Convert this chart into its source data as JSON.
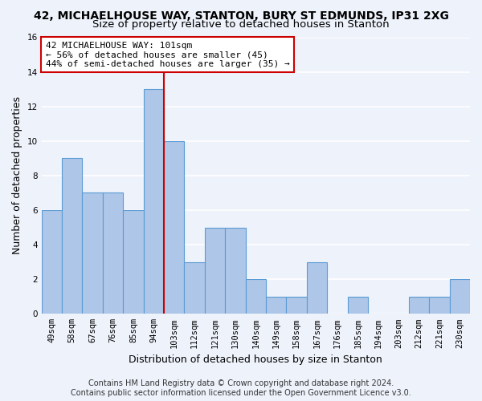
{
  "title_line1": "42, MICHAELHOUSE WAY, STANTON, BURY ST EDMUNDS, IP31 2XG",
  "title_line2": "Size of property relative to detached houses in Stanton",
  "xlabel": "Distribution of detached houses by size in Stanton",
  "ylabel": "Number of detached properties",
  "categories": [
    "49sqm",
    "58sqm",
    "67sqm",
    "76sqm",
    "85sqm",
    "94sqm",
    "103sqm",
    "112sqm",
    "121sqm",
    "130sqm",
    "140sqm",
    "149sqm",
    "158sqm",
    "167sqm",
    "176sqm",
    "185sqm",
    "194sqm",
    "203sqm",
    "212sqm",
    "221sqm",
    "230sqm"
  ],
  "values": [
    6,
    9,
    7,
    7,
    6,
    13,
    10,
    3,
    5,
    5,
    2,
    1,
    1,
    3,
    0,
    1,
    0,
    0,
    1,
    1,
    2
  ],
  "bar_color": "#aec6e8",
  "bar_edgecolor": "#5b9bd5",
  "redline_index": 6,
  "annotation_line1": "42 MICHAELHOUSE WAY: 101sqm",
  "annotation_line2": "← 56% of detached houses are smaller (45)",
  "annotation_line3": "44% of semi-detached houses are larger (35) →",
  "annotation_box_color": "#ffffff",
  "annotation_box_edgecolor": "#cc0000",
  "redline_color": "#cc0000",
  "ylim": [
    0,
    16
  ],
  "yticks": [
    0,
    2,
    4,
    6,
    8,
    10,
    12,
    14,
    16
  ],
  "background_color": "#eef2fb",
  "grid_color": "#ffffff",
  "footer_line1": "Contains HM Land Registry data © Crown copyright and database right 2024.",
  "footer_line2": "Contains public sector information licensed under the Open Government Licence v3.0.",
  "title_fontsize": 10,
  "subtitle_fontsize": 9.5,
  "axis_label_fontsize": 9,
  "tick_fontsize": 7.5,
  "annotation_fontsize": 8,
  "footer_fontsize": 7
}
